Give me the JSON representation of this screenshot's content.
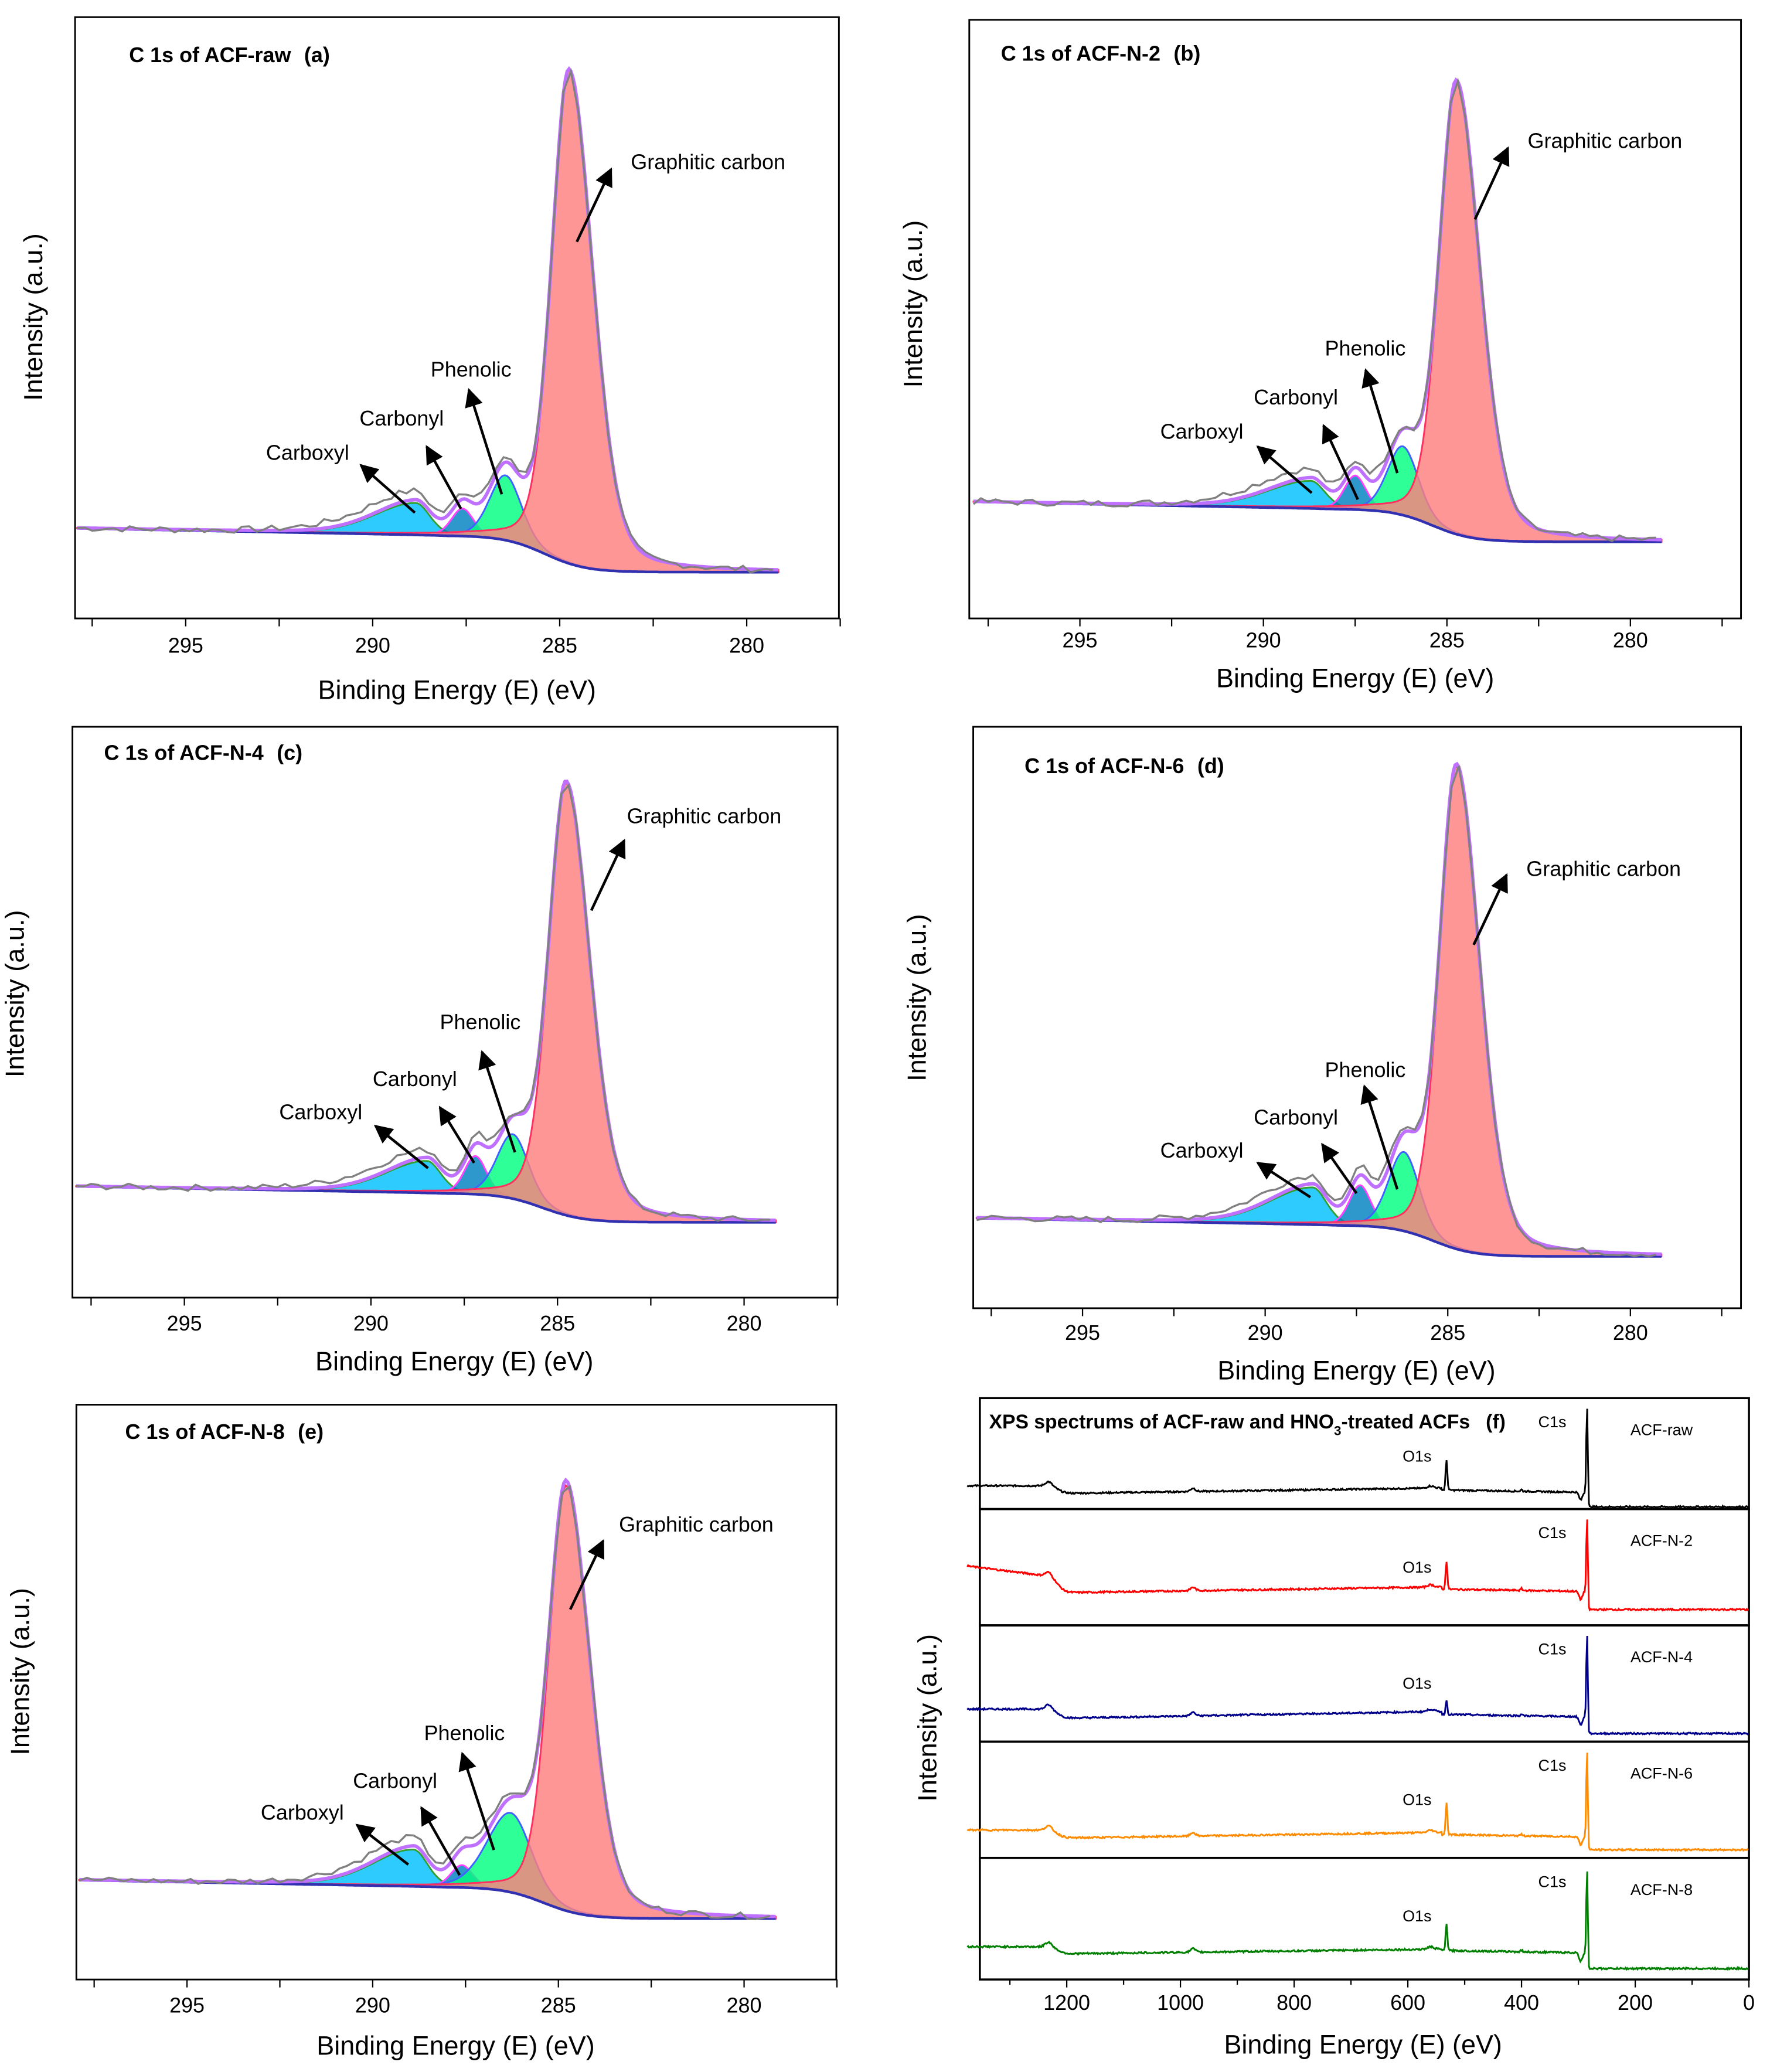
{
  "chart_data": [
    {
      "panel": "a",
      "type": "line",
      "title": "C 1s of ACF-raw",
      "tag": "(a)",
      "xlabel": "Binding Energy (E) (eV)",
      "ylabel": "Intensity (a.u.)",
      "xlim": [
        298,
        277.5
      ],
      "ylim": [
        0,
        100
      ],
      "x_ticks": [
        295,
        290,
        285,
        280
      ],
      "x_tick_labels": [
        "295",
        "290",
        "285",
        "280"
      ],
      "data_range": [
        297.9,
        279.1
      ],
      "background": {
        "high_be_level": 13.8,
        "low_be_level": 7.7,
        "step_center": 285.4
      },
      "components": [
        {
          "name": "Carboxyl",
          "label": "Carboxyl",
          "center": 288.85,
          "height": 5.3,
          "fwhm_high_be": 2.6,
          "fwhm_low_be": 0.9,
          "fill": "#00c0ff",
          "stroke": "#30a030"
        },
        {
          "name": "Carbonyl",
          "label": "Carbonyl",
          "center": 287.6,
          "height": 4.6,
          "fwhm_high_be": 0.7,
          "fwhm_low_be": 0.7,
          "fill": "#0080c0",
          "stroke": "#ff40ff"
        },
        {
          "name": "Phenolic",
          "label": "Phenolic",
          "center": 286.45,
          "height": 10.8,
          "fwhm_high_be": 1.0,
          "fwhm_low_be": 1.0,
          "fill": "#00ff80",
          "stroke": "#4060ff"
        },
        {
          "name": "Graphitic carbon",
          "label": "Graphitic carbon",
          "center": 284.75,
          "height": 82,
          "fwhm_high_be": 1.1,
          "fwhm_low_be": 1.5,
          "fill": "#ff7f7f",
          "stroke": "#ff3060"
        }
      ]
    },
    {
      "panel": "b",
      "type": "line",
      "title": "C 1s of ACF-N-2",
      "tag": "(b)",
      "xlabel": "Binding Energy (E) (eV)",
      "ylabel": "Intensity (a.u.)",
      "xlim": [
        298,
        277
      ],
      "ylim": [
        0,
        100
      ],
      "x_ticks": [
        295,
        290,
        285,
        280
      ],
      "x_tick_labels": [
        "295",
        "290",
        "285",
        "280"
      ],
      "data_range": [
        297.9,
        279.1
      ],
      "background": {
        "high_be_level": 18.3,
        "low_be_level": 12.8,
        "step_center": 285.4
      },
      "components": [
        {
          "name": "Carboxyl",
          "label": "Carboxyl",
          "center": 288.7,
          "height": 4.6,
          "fwhm_high_be": 2.8,
          "fwhm_low_be": 0.9,
          "fill": "#00c0ff",
          "stroke": "#30a030"
        },
        {
          "name": "Carbonyl",
          "label": "Carbonyl",
          "center": 287.5,
          "height": 5.7,
          "fwhm_high_be": 0.7,
          "fwhm_low_be": 0.7,
          "fill": "#0080c0",
          "stroke": "#ff40ff"
        },
        {
          "name": "Phenolic",
          "label": "Phenolic",
          "center": 286.2,
          "height": 11.5,
          "fwhm_high_be": 1.0,
          "fwhm_low_be": 1.0,
          "fill": "#00ff80",
          "stroke": "#4060ff"
        },
        {
          "name": "Graphitic carbon",
          "label": "Graphitic carbon",
          "center": 284.74,
          "height": 75.5,
          "fwhm_high_be": 1.1,
          "fwhm_low_be": 1.5,
          "fill": "#ff7f7f",
          "stroke": "#ff3060"
        }
      ]
    },
    {
      "panel": "c",
      "type": "line",
      "title": "C 1s of ACF-N-4",
      "tag": "(c)",
      "xlabel": "Binding Energy (E) (eV)",
      "ylabel": "Intensity (a.u.)",
      "xlim": [
        298,
        277.5
      ],
      "ylim": [
        0,
        100
      ],
      "x_ticks": [
        295,
        290,
        285,
        280
      ],
      "x_tick_labels": [
        "295",
        "290",
        "285",
        "280"
      ],
      "data_range": [
        297.9,
        279.1
      ],
      "background": {
        "high_be_level": 18.3,
        "low_be_level": 13.2,
        "step_center": 285.4
      },
      "components": [
        {
          "name": "Carboxyl",
          "label": "Carboxyl",
          "center": 288.5,
          "height": 5.6,
          "fwhm_high_be": 2.6,
          "fwhm_low_be": 0.9,
          "fill": "#00c0ff",
          "stroke": "#30a030"
        },
        {
          "name": "Carbonyl",
          "label": "Carbonyl",
          "center": 287.2,
          "height": 6.7,
          "fwhm_high_be": 0.7,
          "fwhm_low_be": 0.7,
          "fill": "#0080c0",
          "stroke": "#ff40ff"
        },
        {
          "name": "Phenolic",
          "label": "Phenolic",
          "center": 286.2,
          "height": 11.3,
          "fwhm_high_be": 1.0,
          "fwhm_low_be": 1.0,
          "fill": "#00ff80",
          "stroke": "#4060ff"
        },
        {
          "name": "Graphitic carbon",
          "label": "Graphitic carbon",
          "center": 284.77,
          "height": 75.7,
          "fwhm_high_be": 1.1,
          "fwhm_low_be": 1.5,
          "fill": "#ff7f7f",
          "stroke": "#ff3060"
        }
      ]
    },
    {
      "panel": "d",
      "type": "line",
      "title": "C 1s of ACF-N-6",
      "tag": "(d)",
      "xlabel": "Binding Energy (E) (eV)",
      "ylabel": "Intensity (a.u.)",
      "xlim": [
        298,
        277
      ],
      "ylim": [
        0,
        100
      ],
      "x_ticks": [
        295,
        290,
        285,
        280
      ],
      "x_tick_labels": [
        "295",
        "290",
        "285",
        "280"
      ],
      "data_range": [
        297.9,
        279.1
      ],
      "background": {
        "high_be_level": 14.3,
        "low_be_level": 8.9,
        "step_center": 285.4
      },
      "components": [
        {
          "name": "Carboxyl",
          "label": "Carboxyl",
          "center": 288.7,
          "height": 6.4,
          "fwhm_high_be": 2.8,
          "fwhm_low_be": 0.9,
          "fill": "#00c0ff",
          "stroke": "#30a030"
        },
        {
          "name": "Carbonyl",
          "label": "Carbonyl",
          "center": 287.4,
          "height": 7.0,
          "fwhm_high_be": 0.7,
          "fwhm_low_be": 0.7,
          "fill": "#0080c0",
          "stroke": "#ff40ff"
        },
        {
          "name": "Phenolic",
          "label": "Phenolic",
          "center": 286.2,
          "height": 13.6,
          "fwhm_high_be": 1.0,
          "fwhm_low_be": 1.0,
          "fill": "#00ff80",
          "stroke": "#4060ff"
        },
        {
          "name": "Graphitic carbon",
          "label": "Graphitic carbon",
          "center": 284.76,
          "height": 83,
          "fwhm_high_be": 1.1,
          "fwhm_low_be": 1.5,
          "fill": "#ff7f7f",
          "stroke": "#ff3060"
        }
      ]
    },
    {
      "panel": "e",
      "type": "line",
      "title": "C 1s of ACF-N-8",
      "tag": "(e)",
      "xlabel": "Binding Energy (E) (eV)",
      "ylabel": "Intensity (a.u.)",
      "xlim": [
        298,
        277.5
      ],
      "ylim": [
        0,
        100
      ],
      "x_ticks": [
        295,
        290,
        285,
        280
      ],
      "x_tick_labels": [
        "295",
        "290",
        "285",
        "280"
      ],
      "data_range": [
        297.9,
        279.1
      ],
      "background": {
        "high_be_level": 16.1,
        "low_be_level": 10.6,
        "step_center": 285.4
      },
      "components": [
        {
          "name": "Carboxyl",
          "label": "Carboxyl",
          "center": 288.9,
          "height": 6.4,
          "fwhm_high_be": 2.6,
          "fwhm_low_be": 0.9,
          "fill": "#00c0ff",
          "stroke": "#30a030"
        },
        {
          "name": "Carbonyl",
          "label": "Carbonyl",
          "center": 287.6,
          "height": 3.9,
          "fwhm_high_be": 0.7,
          "fwhm_low_be": 0.7,
          "fill": "#0080c0",
          "stroke": "#ff40ff"
        },
        {
          "name": "Phenolic",
          "label": "Phenolic",
          "center": 286.28,
          "height": 13.8,
          "fwhm_high_be": 1.5,
          "fwhm_low_be": 1.3,
          "fill": "#00ff80",
          "stroke": "#4060ff"
        },
        {
          "name": "Graphitic carbon",
          "label": "Graphitic carbon",
          "center": 284.79,
          "height": 74,
          "fwhm_high_be": 1.1,
          "fwhm_low_be": 1.5,
          "fill": "#ff7f7f",
          "stroke": "#ff3060"
        }
      ]
    },
    {
      "panel": "f",
      "type": "line",
      "title_parts": [
        "XPS spectrums of ACF-raw and HNO",
        "3",
        "-treated ACFs"
      ],
      "tag": "(f)",
      "xlabel": "Binding Energy (E) (eV)",
      "ylabel": "Intensity (a.u.)",
      "xlim": [
        1375,
        0
      ],
      "x_ticks": [
        1200,
        1000,
        800,
        600,
        400,
        200,
        0
      ],
      "x_tick_labels": [
        "1200",
        "1000",
        "800",
        "600",
        "400",
        "200",
        "0"
      ],
      "peak_labels": {
        "c1s": "C1s",
        "o1s": "O1s"
      },
      "peaks": {
        "c1s_be": 284.8,
        "o1s_be": 532
      },
      "series": [
        {
          "name": "ACF-raw",
          "color": "#000000",
          "ylim": [
            0,
            100
          ],
          "high_be_level": 21,
          "mid_level": 14,
          "o1s_region_level": 19,
          "low_level": 2,
          "c1s_height": 92,
          "o1s_height": 46
        },
        {
          "name": "ACF-N-2",
          "color": "#ff0000",
          "ylim": [
            0,
            100
          ],
          "high_be_level": 42,
          "mid_level": 28,
          "o1s_region_level": 33,
          "low_level": 13.6,
          "c1s_height": 91,
          "o1s_height": 57
        },
        {
          "name": "ACF-N-4",
          "color": "#00008b",
          "ylim": [
            0,
            100
          ],
          "high_be_level": 28,
          "mid_level": 20,
          "o1s_region_level": 26,
          "low_level": 7,
          "c1s_height": 91,
          "o1s_height": 38
        },
        {
          "name": "ACF-N-6",
          "color": "#ff8c00",
          "ylim": [
            0,
            100
          ],
          "high_be_level": 24,
          "mid_level": 17,
          "o1s_region_level": 22,
          "low_level": 7,
          "c1s_height": 92,
          "o1s_height": 49
        },
        {
          "name": "ACF-N-8",
          "color": "#008000",
          "ylim": [
            0,
            100
          ],
          "high_be_level": 27,
          "mid_level": 21,
          "o1s_region_level": 25,
          "low_level": 9,
          "c1s_height": 90,
          "o1s_height": 47
        }
      ]
    }
  ]
}
